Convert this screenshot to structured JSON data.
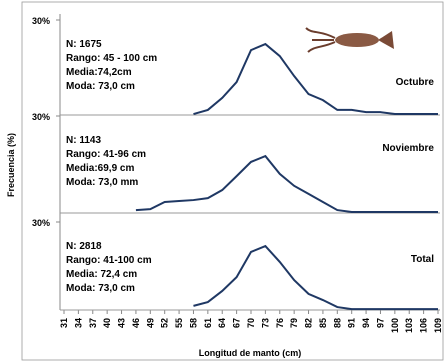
{
  "chart_data": {
    "type": "line",
    "ylabel": "Frecuencia (%)",
    "xlabel": "Longitud de manto (cm)",
    "categories": [
      "31",
      "34",
      "37",
      "40",
      "43",
      "46",
      "49",
      "52",
      "55",
      "58",
      "61",
      "64",
      "67",
      "70",
      "73",
      "76",
      "79",
      "82",
      "85",
      "88",
      "91",
      "94",
      "97",
      "100",
      "103",
      "106",
      "109"
    ],
    "panels": [
      {
        "name": "Octubre",
        "color": "#1f3864",
        "ylim": [
          0,
          30
        ],
        "yticks": [
          {
            "value": 30,
            "label": "30%"
          }
        ],
        "stats": [
          "N: 1675",
          "Rango:  45 - 100 cm",
          "Media:74,2cm",
          "Moda: 73,0 cm"
        ],
        "values": [
          null,
          null,
          null,
          null,
          null,
          null,
          null,
          null,
          null,
          0.3,
          1.6,
          5.4,
          10.4,
          20.5,
          22.4,
          18.6,
          12.3,
          6.6,
          4.7,
          1.6,
          1.6,
          0.9,
          0.9,
          0.3,
          0.3,
          0.3,
          0.3
        ]
      },
      {
        "name": "Noviembre",
        "color": "#1f3864",
        "ylim": [
          0,
          30
        ],
        "yticks": [
          {
            "value": 30,
            "label": "30%"
          }
        ],
        "stats": [
          "N: 1143",
          "Rango: 41-96 cm",
          "Media:69,9 cm",
          "Moda:  73,0 mm"
        ],
        "values": [
          null,
          null,
          null,
          null,
          null,
          0.9,
          1.2,
          3.4,
          3.7,
          4.0,
          4.6,
          7.1,
          11.4,
          15.8,
          17.6,
          12.1,
          8.4,
          5.9,
          3.4,
          0.9,
          0.3,
          0.3,
          0.3,
          0.3,
          0.3,
          0.3,
          0.3
        ]
      },
      {
        "name": "Total",
        "color": "#1f3864",
        "ylim": [
          0,
          30
        ],
        "yticks": [
          {
            "value": 30,
            "label": "30%"
          }
        ],
        "stats": [
          "N: 2818",
          "Rango: 41-100 cm",
          "Media: 72,4 cm",
          "Moda:  73,0 cm"
        ],
        "values": [
          null,
          null,
          null,
          null,
          null,
          null,
          null,
          null,
          null,
          1.4,
          2.7,
          6.5,
          11.2,
          19.8,
          21.8,
          16.4,
          10.2,
          5.5,
          3.4,
          1.0,
          0.3,
          0.3,
          0.3,
          0.3,
          0.3,
          0.3,
          0.3
        ]
      }
    ]
  }
}
